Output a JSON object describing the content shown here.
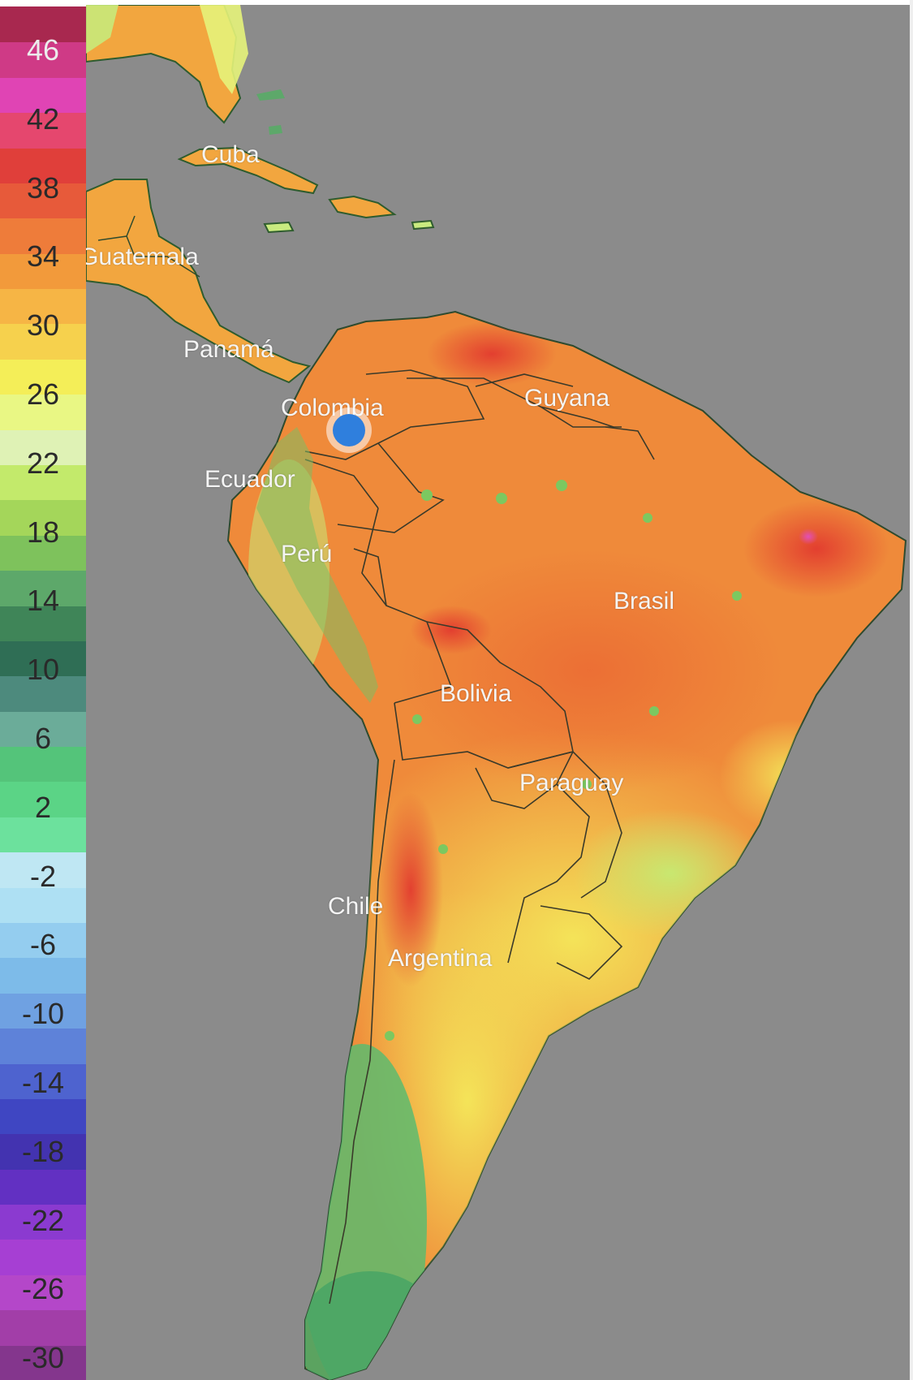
{
  "legend": {
    "top_indicator": ".....",
    "ticks": [
      "46",
      "42",
      "38",
      "34",
      "30",
      "26",
      "22",
      "18",
      "14",
      "10",
      "6",
      "2",
      "-2",
      "-6",
      "-10",
      "-14",
      "-18",
      "-22",
      "-26",
      "-30"
    ],
    "colors": [
      "#a8284f",
      "#cf3a86",
      "#e044b4",
      "#e5476e",
      "#e03f3a",
      "#e75a3a",
      "#ee7c3a",
      "#f29a3b",
      "#f6b545",
      "#f6d14d",
      "#f4ee58",
      "#e9f784",
      "#dff2b5",
      "#c3ea6b",
      "#a4d65a",
      "#7ec25c",
      "#5da86a",
      "#3f8558",
      "#2f6e55",
      "#4d8a7d",
      "#6bac99",
      "#54c47a",
      "#5bd486",
      "#6ce19d",
      "#bfe7f3",
      "#aee0f3",
      "#94cdef",
      "#7dbbe9",
      "#6fa1e2",
      "#5e82d9",
      "#4e63cf",
      "#3f46c2",
      "#4333b0",
      "#6230c2",
      "#8b3ad0",
      "#a63fd3",
      "#b447c9",
      "#a23ea8",
      "#84368d"
    ]
  },
  "map": {
    "background_color": "#8b8b8b",
    "labels": [
      {
        "id": "cuba",
        "text": "Cuba"
      },
      {
        "id": "guatemala",
        "text": "Guatemala"
      },
      {
        "id": "panama",
        "text": "Panamá"
      },
      {
        "id": "colombia",
        "text": "Colombia"
      },
      {
        "id": "guyana",
        "text": "Guyana"
      },
      {
        "id": "ecuador",
        "text": "Ecuador"
      },
      {
        "id": "peru",
        "text": "Perú"
      },
      {
        "id": "brasil",
        "text": "Brasil"
      },
      {
        "id": "bolivia",
        "text": "Bolivia"
      },
      {
        "id": "paraguay",
        "text": "Paraguay"
      },
      {
        "id": "chile",
        "text": "Chile"
      },
      {
        "id": "argentina",
        "text": "Argentina"
      }
    ],
    "location_marker": {
      "color": "#2f7fdd"
    }
  }
}
